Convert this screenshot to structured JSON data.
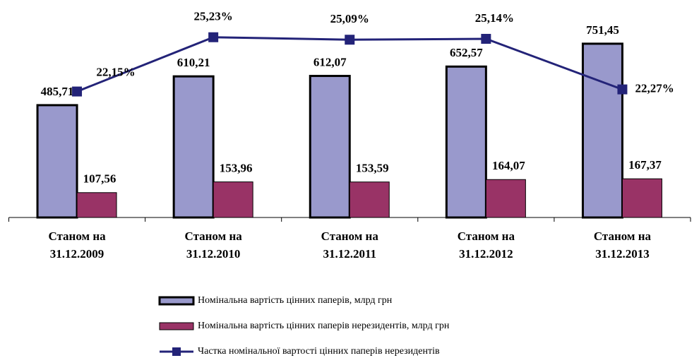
{
  "chart_data": {
    "type": "bar",
    "categories": [
      [
        "Станом на",
        "31.12.2009"
      ],
      [
        "Станом на",
        "31.12.2010"
      ],
      [
        "Станом на",
        "31.12.2011"
      ],
      [
        "Станом на",
        "31.12.2012"
      ],
      [
        "Станом на",
        "31.12.2013"
      ]
    ],
    "ylim": [
      0,
      800
    ],
    "y2lim": [
      15,
      25.5
    ],
    "series": [
      {
        "name": "Номінальна вартість цінних паперів, млрд грн",
        "type": "bar",
        "color": "#9999cc",
        "values": [
          485.71,
          610.21,
          612.07,
          652.57,
          751.45
        ],
        "value_labels": [
          "485,71",
          "610,21",
          "612,07",
          "652,57",
          "751,45"
        ]
      },
      {
        "name": "Номінальна вартість цінних паперів нерезидентів, млрд грн",
        "type": "bar",
        "color": "#993366",
        "values": [
          107.56,
          153.96,
          153.59,
          164.07,
          167.37
        ],
        "value_labels": [
          "107,56",
          "153,96",
          "153,59",
          "164,07",
          "167,37"
        ]
      },
      {
        "name": "Частка номінальної вартості цінних паперів нерезидентів",
        "type": "line",
        "axis": "y2",
        "color": "#232378",
        "values": [
          22.15,
          25.23,
          25.09,
          25.14,
          22.27
        ],
        "value_labels": [
          "22,15%",
          "25,23%",
          "25,09%",
          "25,14%",
          "22,27%"
        ]
      }
    ]
  }
}
